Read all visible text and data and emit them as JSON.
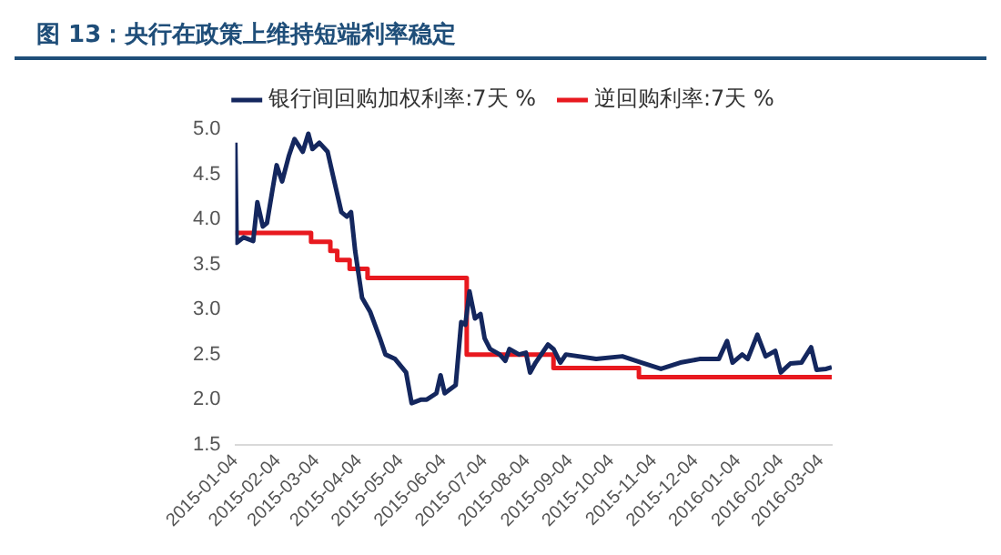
{
  "chart_data": {
    "type": "line",
    "title": "图 13：央行在政策上维持短端利率稳定",
    "xlim": [
      "2015-01-04",
      "2016-03-12"
    ],
    "xticks": [
      "2015-01-04",
      "2015-02-04",
      "2015-03-04",
      "2015-04-04",
      "2015-05-04",
      "2015-06-04",
      "2015-07-04",
      "2015-08-04",
      "2015-09-04",
      "2015-10-04",
      "2015-11-04",
      "2015-12-04",
      "2016-01-04",
      "2016-02-04",
      "2016-03-04"
    ],
    "ylim": [
      1.5,
      5.0
    ],
    "yticks": [
      {
        "value": 1.5,
        "label": "1.5"
      },
      {
        "value": 2,
        "label": "2.0"
      },
      {
        "value": 2.5,
        "label": "2.5"
      },
      {
        "value": 3,
        "label": "3.0"
      },
      {
        "value": 3.5,
        "label": "3.5"
      },
      {
        "value": 4,
        "label": "4.0"
      },
      {
        "value": 4.5,
        "label": "4.5"
      },
      {
        "value": 5,
        "label": "5.0"
      }
    ],
    "grid": false,
    "legend": "top",
    "marker": "none",
    "line_style": "solid",
    "series": [
      {
        "name": "银行间回购加权利率:7天 %",
        "color": "#14275e",
        "type": "line",
        "x": [
          "2015-01-04",
          "2015-01-05",
          "2015-01-10",
          "2015-01-17",
          "2015-01-20",
          "2015-01-24",
          "2015-01-27",
          "2015-01-31",
          "2015-02-03",
          "2015-02-07",
          "2015-02-12",
          "2015-02-16",
          "2015-02-22",
          "2015-02-26",
          "2015-03-01",
          "2015-03-06",
          "2015-03-12",
          "2015-03-16",
          "2015-03-22",
          "2015-03-26",
          "2015-03-29",
          "2015-04-01",
          "2015-04-06",
          "2015-04-12",
          "2015-04-19",
          "2015-04-23",
          "2015-04-30",
          "2015-05-08",
          "2015-05-12",
          "2015-05-19",
          "2015-05-23",
          "2015-05-30",
          "2015-06-02",
          "2015-06-05",
          "2015-06-13",
          "2015-06-17",
          "2015-06-20",
          "2015-06-23",
          "2015-06-27",
          "2015-07-01",
          "2015-07-04",
          "2015-07-08",
          "2015-07-15",
          "2015-07-19",
          "2015-07-22",
          "2015-07-29",
          "2015-08-03",
          "2015-08-06",
          "2015-08-10",
          "2015-08-19",
          "2015-08-23",
          "2015-08-28",
          "2015-09-01",
          "2015-09-23",
          "2015-10-12",
          "2015-10-26",
          "2015-11-09",
          "2015-11-23",
          "2015-12-07",
          "2015-12-21",
          "2015-12-27",
          "2015-12-31",
          "2016-01-07",
          "2016-01-11",
          "2016-01-18",
          "2016-01-24",
          "2016-01-31",
          "2016-02-04",
          "2016-02-11",
          "2016-02-19",
          "2016-02-26",
          "2016-03-01",
          "2016-03-08",
          "2016-03-12"
        ],
        "values": [
          4.85,
          3.74,
          3.8,
          3.76,
          4.19,
          3.92,
          3.96,
          4.33,
          4.6,
          4.42,
          4.71,
          4.89,
          4.75,
          4.95,
          4.78,
          4.85,
          4.75,
          4.48,
          4.08,
          4.03,
          4.08,
          3.65,
          3.13,
          2.97,
          2.68,
          2.5,
          2.45,
          2.3,
          1.96,
          2.0,
          2.0,
          2.07,
          2.27,
          2.07,
          2.16,
          2.86,
          2.83,
          3.2,
          2.9,
          2.95,
          2.68,
          2.56,
          2.5,
          2.43,
          2.56,
          2.5,
          2.52,
          2.3,
          2.41,
          2.61,
          2.56,
          2.41,
          2.5,
          2.45,
          2.48,
          2.41,
          2.34,
          2.41,
          2.45,
          2.45,
          2.65,
          2.41,
          2.5,
          2.45,
          2.72,
          2.48,
          2.54,
          2.3,
          2.4,
          2.41,
          2.58,
          2.33,
          2.34,
          2.36
        ]
      },
      {
        "name": "逆回购利率:7天 %",
        "color": "#e8191f",
        "type": "step",
        "x": [
          "2015-01-04",
          "2015-02-28",
          "2015-03-14",
          "2015-03-19",
          "2015-03-28",
          "2015-04-10",
          "2015-06-21",
          "2015-08-23",
          "2015-10-24",
          "2016-03-12"
        ],
        "values": [
          3.85,
          3.75,
          3.65,
          3.55,
          3.45,
          3.35,
          2.5,
          2.35,
          2.25,
          2.25
        ]
      }
    ]
  }
}
